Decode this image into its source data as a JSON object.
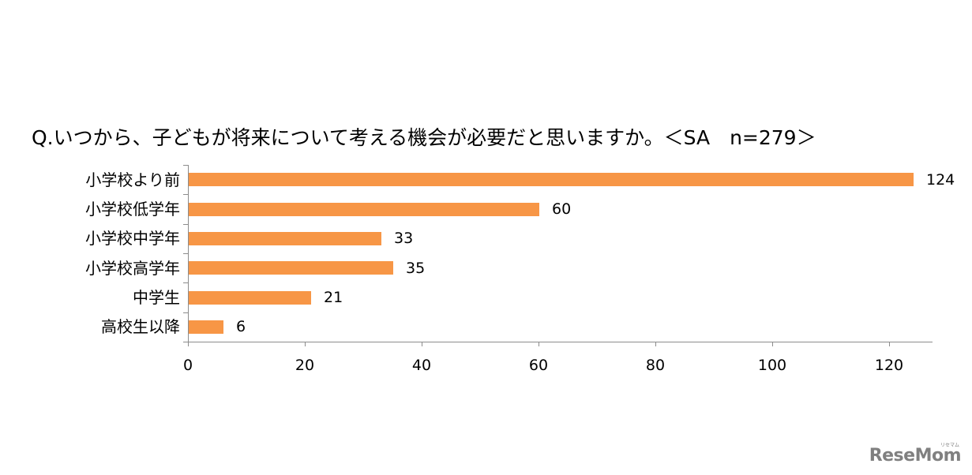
{
  "title": "Q.いつから、子どもが将来について考える機会が必要だと思いますか。＜SA　n=279＞",
  "watermark": {
    "text": "ReseMom",
    "subtext": "リセマム"
  },
  "colors": {
    "bar": "#f79646",
    "axis": "#8c8c8c",
    "text": "#000000",
    "watermark": "#808080"
  },
  "chart_data": {
    "type": "bar",
    "orientation": "horizontal",
    "title": "Q.いつから、子どもが将来について考える機会が必要だと思いますか。＜SA　n=279＞",
    "categories": [
      "小学校より前",
      "小学校低学年",
      "小学校中学年",
      "小学校高学年",
      "中学生",
      "高校生以降"
    ],
    "values": [
      124,
      60,
      33,
      35,
      21,
      6
    ],
    "data_labels": [
      "124",
      "60",
      "33",
      "35",
      "21",
      "6"
    ],
    "xlabel": "",
    "ylabel": "",
    "xlim": [
      0,
      130
    ],
    "x_ticks": [
      "0",
      "20",
      "40",
      "60",
      "80",
      "100",
      "120"
    ],
    "x_tick_values": [
      0,
      20,
      40,
      60,
      80,
      100,
      120
    ],
    "grid": false,
    "legend": null,
    "n": 279
  }
}
